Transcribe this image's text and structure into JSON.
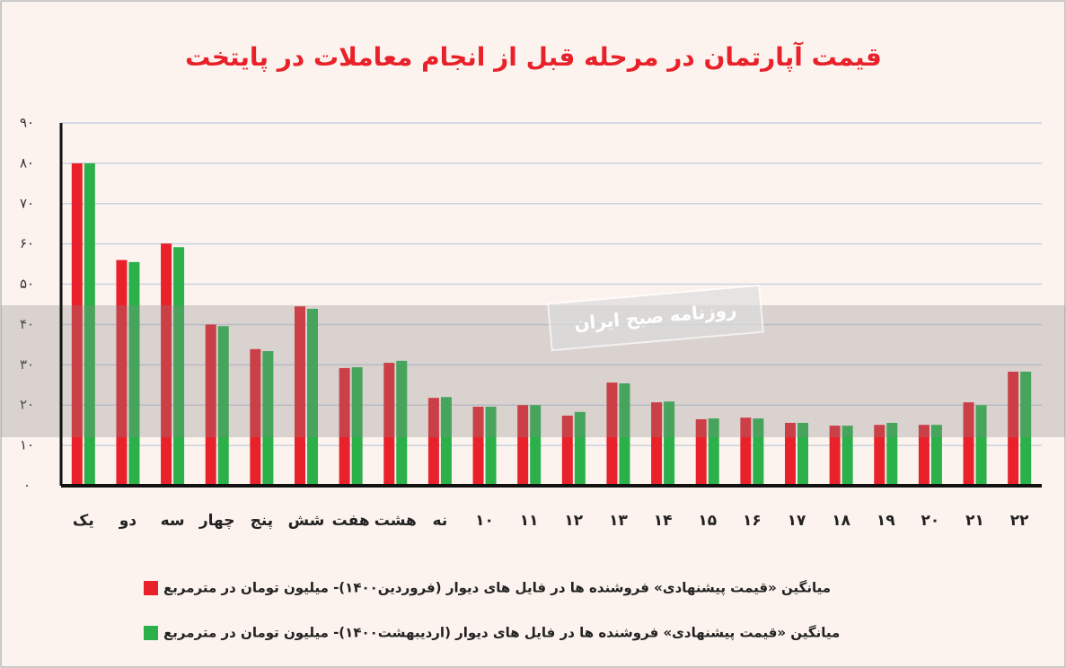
{
  "chart_data": {
    "type": "bar",
    "title": "قیمت آپارتمان در مرحله قبل از انجام معاملات در پایتخت",
    "watermark": "روزنامه صبح ایران",
    "categories": [
      "یک",
      "دو",
      "سه",
      "چهار",
      "پنج",
      "شش",
      "هفت",
      "هشت",
      "نه",
      "۱۰",
      "۱۱",
      "۱۲",
      "۱۳",
      "۱۴",
      "۱۵",
      "۱۶",
      "۱۷",
      "۱۸",
      "۱۹",
      "۲۰",
      "۲۱",
      "۲۲"
    ],
    "series": [
      {
        "name": "میانگین «قیمت پیشنهادی» فروشنده ها در فایل های دیوار (فروردین۱۴۰۰)- میلیون تومان در مترمربع",
        "color": "#e8212a",
        "values": [
          80,
          56,
          60.1,
          40,
          33.9,
          44.5,
          29.2,
          30.5,
          21.8,
          19.6,
          20,
          17.4,
          25.6,
          20.7,
          16.5,
          16.9,
          15.6,
          14.9,
          15.1,
          15.1,
          20.7,
          28.3
        ]
      },
      {
        "name": "میانگین «قیمت پیشنهادی» فروشنده ها در فایل های دیوار (اردیبهشت۱۴۰۰)- میلیون تومان در مترمربع",
        "color": "#2bb04a",
        "values": [
          80,
          55.5,
          59.2,
          39.6,
          33.4,
          43.9,
          29.4,
          31,
          22,
          19.6,
          20,
          18.3,
          25.4,
          20.9,
          16.7,
          16.7,
          15.6,
          14.9,
          15.6,
          15.1,
          20,
          28.3
        ]
      }
    ],
    "ylim": [
      0,
      90
    ],
    "yticks": [
      {
        "value": 0,
        "label": "۰"
      },
      {
        "value": 10,
        "label": "۱۰"
      },
      {
        "value": 20,
        "label": "۲۰"
      },
      {
        "value": 30,
        "label": "۳۰"
      },
      {
        "value": 40,
        "label": "۴۰"
      },
      {
        "value": 50,
        "label": "۵۰"
      },
      {
        "value": 60,
        "label": "۶۰"
      },
      {
        "value": 70,
        "label": "۷۰"
      },
      {
        "value": 80,
        "label": "۸۰"
      },
      {
        "value": 90,
        "label": "۹۰"
      }
    ],
    "grid": true
  }
}
